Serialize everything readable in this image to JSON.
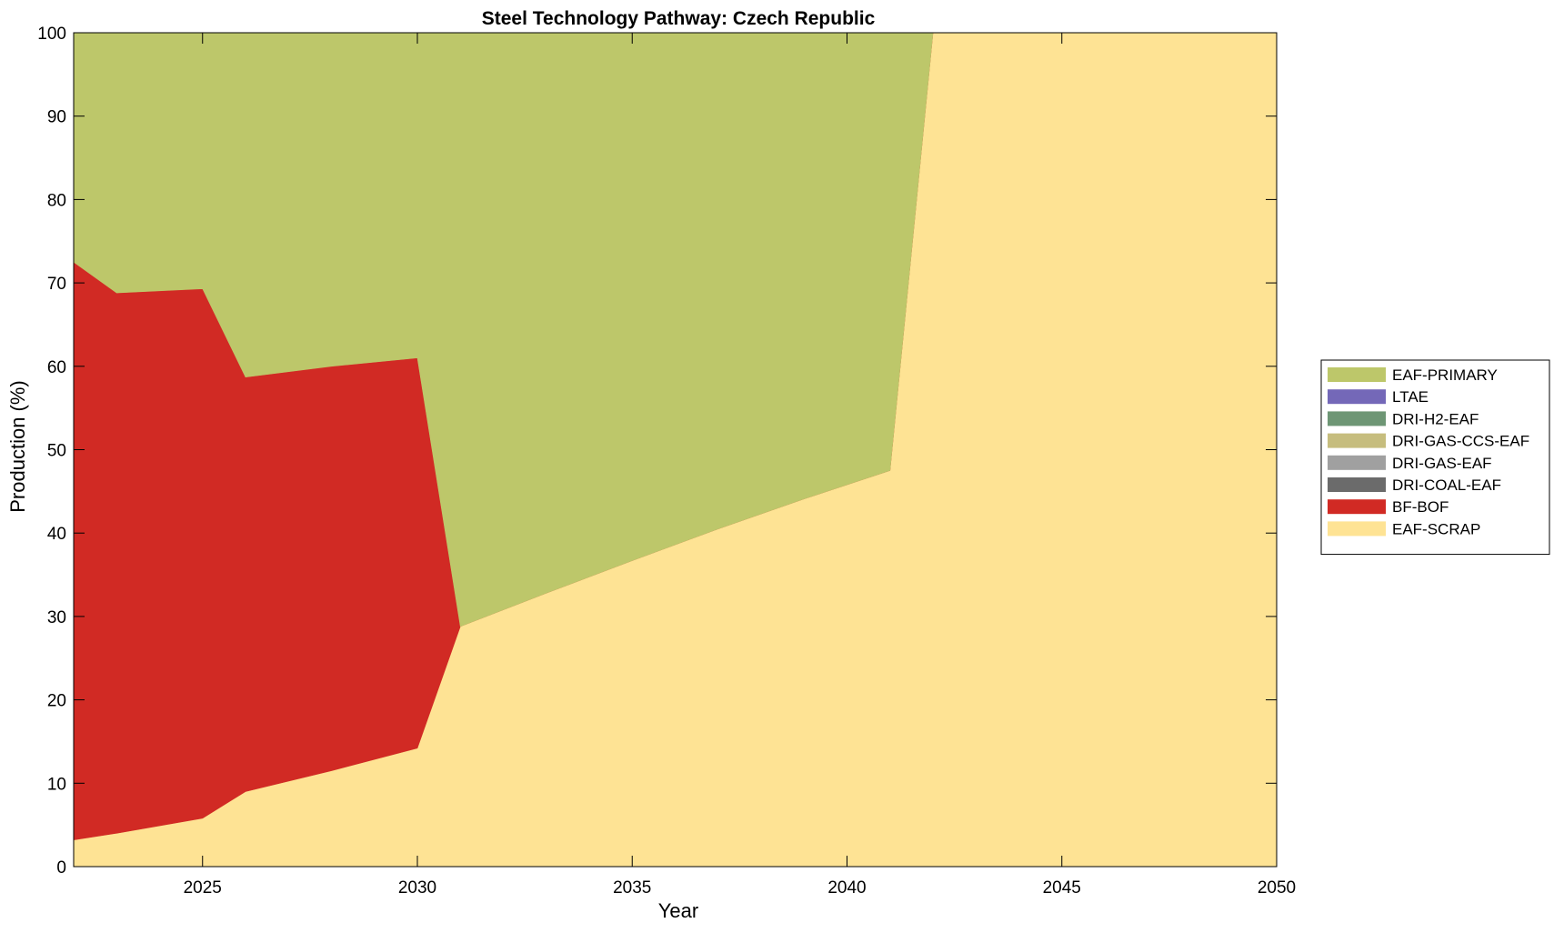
{
  "chart_data": {
    "type": "area",
    "title": "Steel Technology Pathway: Czech Republic",
    "xlabel": "Year",
    "ylabel": "Production (%)",
    "xlim": [
      2022,
      2050
    ],
    "ylim": [
      0,
      100
    ],
    "xticks": [
      2025,
      2030,
      2035,
      2040,
      2045,
      2050
    ],
    "yticks": [
      0,
      10,
      20,
      30,
      40,
      50,
      60,
      70,
      80,
      90,
      100
    ],
    "stacked": true,
    "grid": false,
    "legend_position": "right",
    "x": [
      2022,
      2023,
      2025,
      2026,
      2028,
      2030,
      2031,
      2033,
      2035,
      2037,
      2039,
      2041,
      2042,
      2050
    ],
    "series": [
      {
        "name": "EAF-SCRAP",
        "color": "#FEE394",
        "values": [
          3.2,
          4.0,
          5.8,
          9.0,
          11.5,
          14.2,
          28.8,
          32.8,
          36.7,
          40.5,
          44.1,
          47.5,
          100,
          100
        ]
      },
      {
        "name": "BF-BOF",
        "color": "#D12A24",
        "values": [
          69.3,
          64.8,
          63.5,
          49.7,
          48.5,
          46.8,
          0,
          0,
          0,
          0,
          0,
          0,
          0,
          0
        ]
      },
      {
        "name": "DRI-COAL-EAF",
        "color": "#6B6B6B",
        "values": [
          0,
          0,
          0,
          0,
          0,
          0,
          0,
          0,
          0,
          0,
          0,
          0,
          0,
          0
        ]
      },
      {
        "name": "DRI-GAS-EAF",
        "color": "#A0A0A0",
        "values": [
          0,
          0,
          0,
          0,
          0,
          0,
          0,
          0,
          0,
          0,
          0,
          0,
          0,
          0
        ]
      },
      {
        "name": "DRI-GAS-CCS-EAF",
        "color": "#C6BD7E",
        "values": [
          0,
          0,
          0,
          0,
          0,
          0,
          0,
          0,
          0,
          0,
          0,
          0,
          0,
          0
        ]
      },
      {
        "name": "DRI-H2-EAF",
        "color": "#6E9675",
        "values": [
          0,
          0,
          0,
          0,
          0,
          0,
          0,
          0,
          0,
          0,
          0,
          0,
          0,
          0
        ]
      },
      {
        "name": "LTAE",
        "color": "#7468B8",
        "values": [
          0,
          0,
          0,
          0,
          0,
          0,
          0,
          0,
          0,
          0,
          0,
          0,
          0,
          0
        ]
      },
      {
        "name": "EAF-PRIMARY",
        "color": "#BDC76A",
        "values": [
          27.5,
          31.2,
          30.7,
          41.3,
          40.0,
          39.0,
          71.2,
          67.2,
          63.3,
          59.5,
          55.9,
          52.5,
          0,
          0
        ]
      }
    ],
    "legend_order": [
      "EAF-PRIMARY",
      "LTAE",
      "DRI-H2-EAF",
      "DRI-GAS-CCS-EAF",
      "DRI-GAS-EAF",
      "DRI-COAL-EAF",
      "BF-BOF",
      "EAF-SCRAP"
    ]
  }
}
